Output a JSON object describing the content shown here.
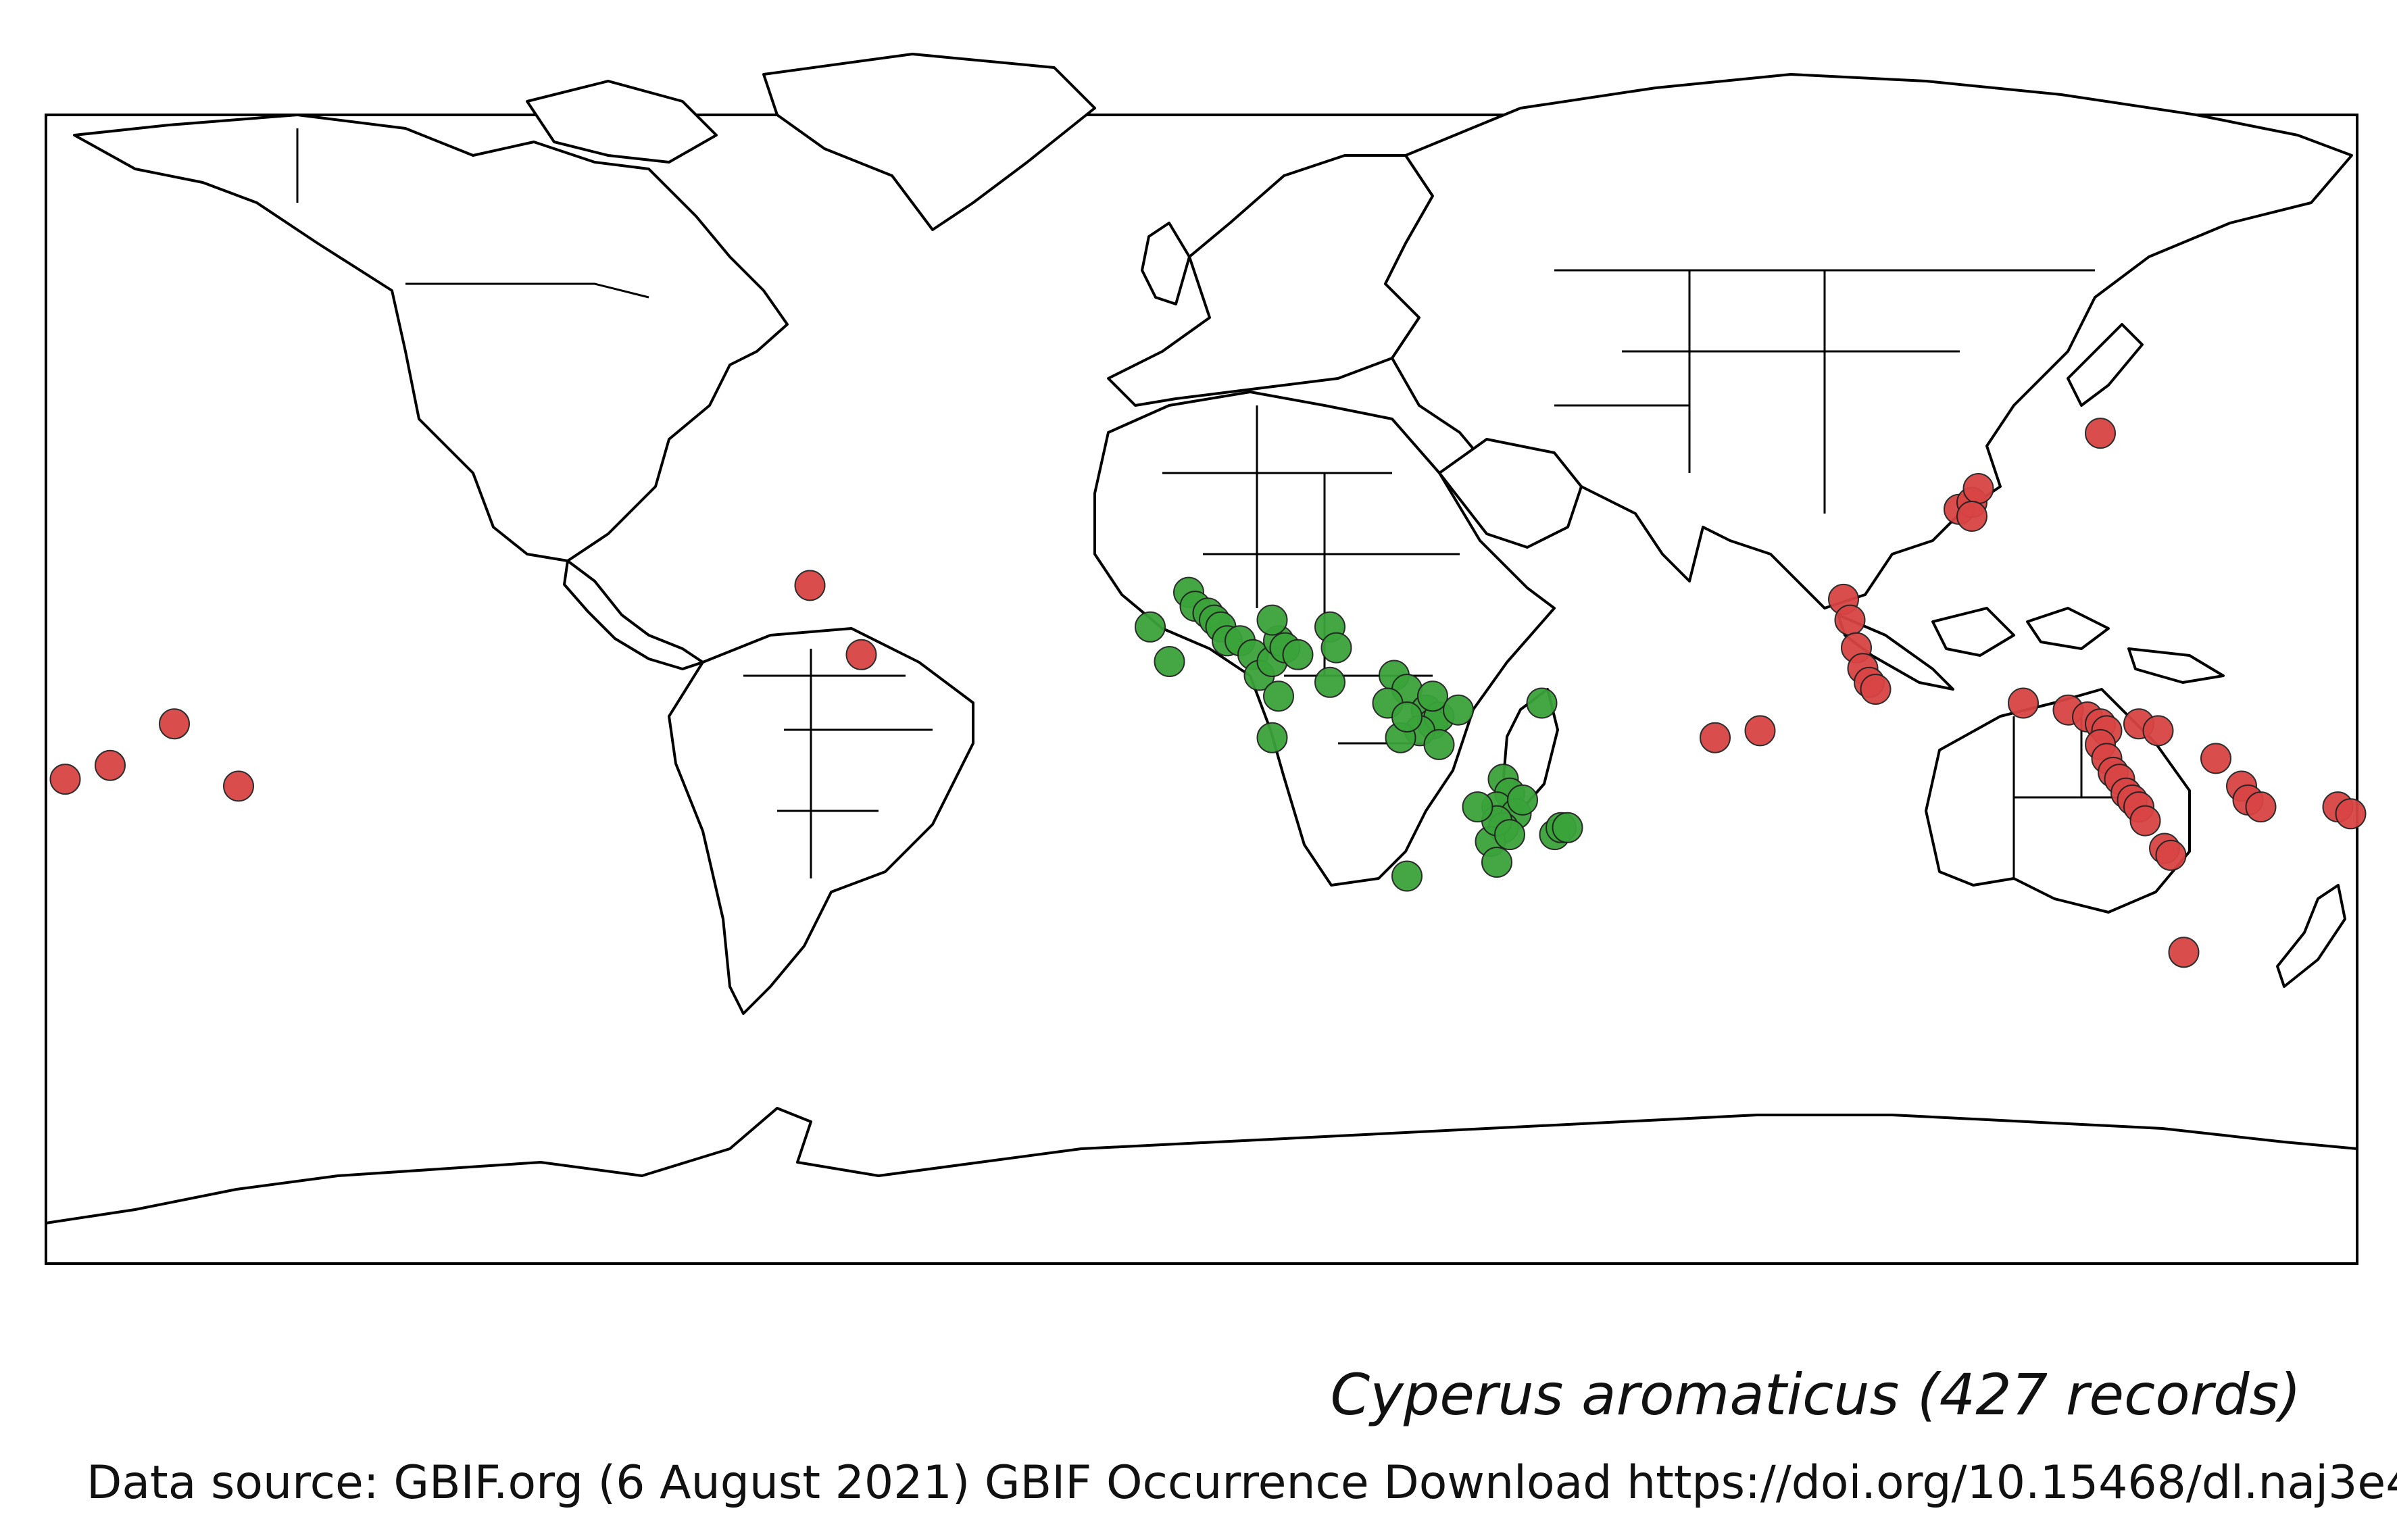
{
  "title": "Cyperus aromaticus (427 records)",
  "source": "Data source: GBIF.org (6 August 2021) GBIF Occurrence Download https://doi.org/10.15468/dl.naj3e4",
  "projection": "equirectangular",
  "colors": {
    "native": "#3aa33a",
    "introduced": "#d94444",
    "land_stroke": "#000000"
  },
  "occurrence_groups": [
    {
      "status": "native",
      "color": "#3aa33a",
      "points": [
        [
          -2,
          14
        ],
        [
          -1,
          12
        ],
        [
          1,
          11
        ],
        [
          2,
          10
        ],
        [
          3,
          9
        ],
        [
          4,
          7
        ],
        [
          6,
          7
        ],
        [
          -8,
          9
        ],
        [
          -5,
          4
        ],
        [
          8,
          5
        ],
        [
          9,
          2
        ],
        [
          11,
          4
        ],
        [
          12,
          7
        ],
        [
          13,
          6
        ],
        [
          15,
          5
        ],
        [
          20,
          9
        ],
        [
          11,
          10
        ],
        [
          21,
          6
        ],
        [
          20,
          1
        ],
        [
          12,
          -1
        ],
        [
          30,
          2
        ],
        [
          32,
          0
        ],
        [
          29,
          -2
        ],
        [
          35,
          -3
        ],
        [
          36,
          -5
        ],
        [
          37,
          -4
        ],
        [
          36,
          -1
        ],
        [
          40,
          -3
        ],
        [
          34,
          -6
        ],
        [
          31,
          -7
        ],
        [
          37,
          -8
        ],
        [
          32,
          -4
        ],
        [
          47,
          -13
        ],
        [
          48,
          -15
        ],
        [
          46,
          -17
        ],
        [
          49,
          -18
        ],
        [
          47,
          -20
        ],
        [
          45,
          -22
        ],
        [
          46,
          -19
        ],
        [
          48,
          -21
        ],
        [
          43,
          -17
        ],
        [
          55,
          -21
        ],
        [
          56,
          -20
        ],
        [
          57,
          -20
        ],
        [
          32,
          -27
        ],
        [
          46,
          -25
        ],
        [
          50,
          -16
        ],
        [
          53,
          -2
        ],
        [
          11,
          -7
        ]
      ]
    },
    {
      "status": "introduced",
      "color": "#d94444",
      "points": [
        [
          140,
          37
        ],
        [
          118,
          26
        ],
        [
          120,
          27
        ],
        [
          121,
          29
        ],
        [
          120,
          25
        ],
        [
          100,
          13
        ],
        [
          101,
          10
        ],
        [
          102,
          6
        ],
        [
          103,
          3
        ],
        [
          104,
          1
        ],
        [
          105,
          0
        ],
        [
          80,
          -7
        ],
        [
          87,
          -6
        ],
        [
          128,
          -2
        ],
        [
          135,
          -3
        ],
        [
          138,
          -4
        ],
        [
          140,
          -5
        ],
        [
          141,
          -6
        ],
        [
          146,
          -5
        ],
        [
          149,
          -6
        ],
        [
          140,
          -8
        ],
        [
          141,
          -10
        ],
        [
          142,
          -12
        ],
        [
          143,
          -13
        ],
        [
          144,
          -15
        ],
        [
          145,
          -16
        ],
        [
          146,
          -17
        ],
        [
          147,
          -19
        ],
        [
          150,
          -23
        ],
        [
          151,
          -24
        ],
        [
          158,
          -10
        ],
        [
          162,
          -14
        ],
        [
          163,
          -16
        ],
        [
          165,
          -17
        ],
        [
          177,
          -17
        ],
        [
          179,
          -18
        ],
        [
          153,
          -38
        ],
        [
          -61,
          15
        ],
        [
          -53,
          5
        ],
        [
          -160,
          -5
        ],
        [
          -177,
          -13
        ],
        [
          -170,
          -11
        ],
        [
          -150,
          -14
        ]
      ]
    }
  ]
}
